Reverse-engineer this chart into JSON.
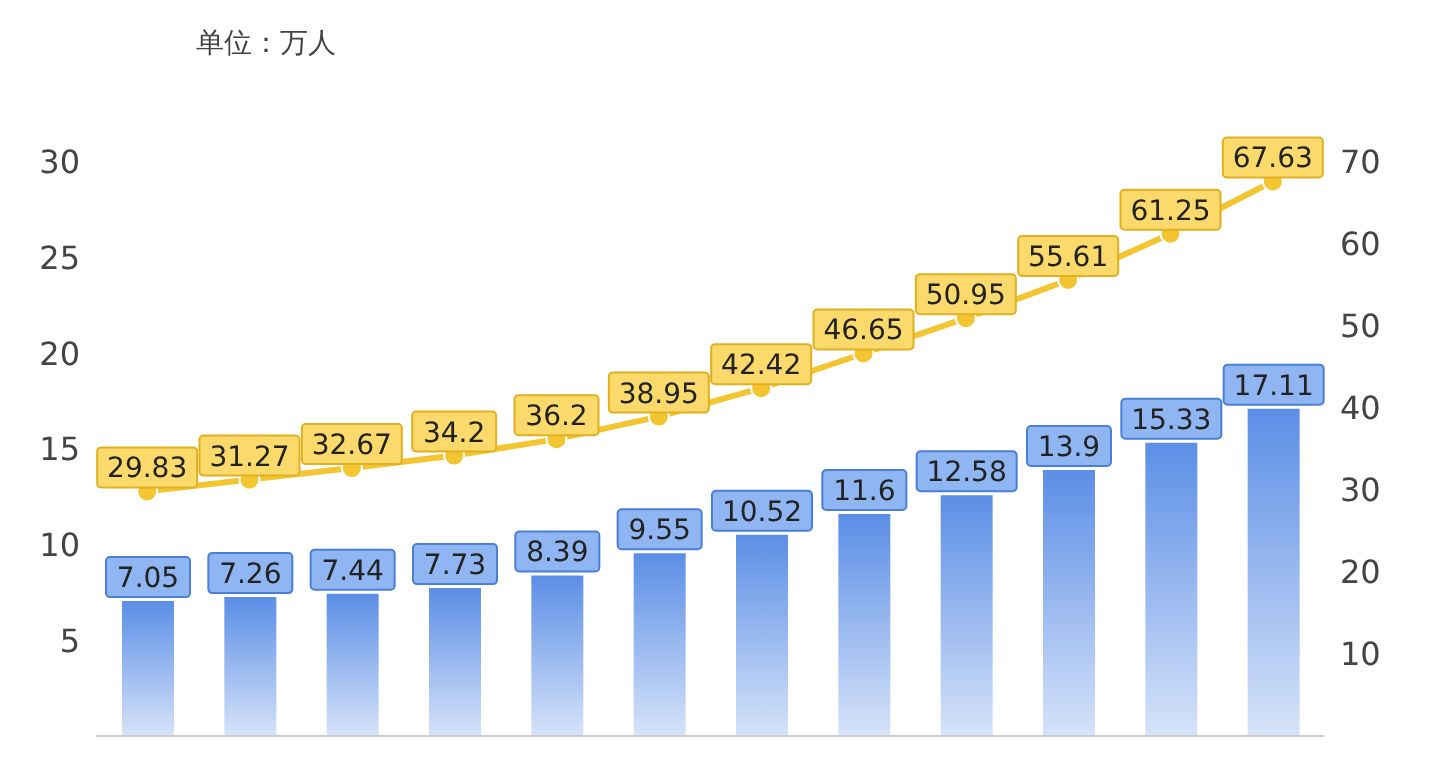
{
  "chart_data": {
    "type": "bar",
    "annotations": [
      "单位：万人"
    ],
    "categories": [
      null,
      null,
      null,
      null,
      null,
      null,
      null,
      null,
      null,
      null,
      null,
      null
    ],
    "series": [
      {
        "color": "#5b8ee6",
        "values": [
          7.05,
          7.26,
          7.44,
          7.73,
          8.39,
          9.55,
          10.52,
          11.6,
          12.58,
          13.9,
          15.33,
          17.11
        ]
      },
      {
        "type": "line",
        "axis": "y2",
        "color": "#f2c531",
        "values": [
          29.83,
          31.27,
          32.67,
          34.2,
          36.2,
          38.95,
          42.42,
          46.65,
          50.95,
          55.61,
          61.25,
          67.63
        ]
      }
    ],
    "ylim": [
      0,
      30
    ],
    "yticks": [
      5,
      10,
      15,
      20,
      25,
      30
    ],
    "y2lim": [
      0,
      70
    ],
    "y2ticks": [
      10,
      20,
      30,
      40,
      50,
      60,
      70
    ],
    "tick_labels": "y",
    "data_labels": true,
    "marker": "circle"
  }
}
